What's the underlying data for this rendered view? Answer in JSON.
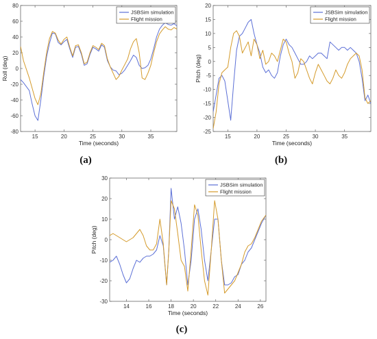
{
  "chart_data": [
    {
      "id": "a",
      "type": "line",
      "caption": "(a)",
      "title": "",
      "xlabel": "Time (seconds)",
      "ylabel": "Roll (deg)",
      "xlim": [
        12.5,
        39.5
      ],
      "ylim": [
        -80,
        80
      ],
      "xticks": [
        15,
        20,
        25,
        30,
        35
      ],
      "yticks": [
        -80,
        -60,
        -40,
        -20,
        0,
        20,
        40,
        60,
        80
      ],
      "legend_position": "top-right",
      "series": [
        {
          "name": "JSBSim simulation",
          "color": "#5b6fd6",
          "x": [
            12.5,
            13,
            14,
            14.5,
            15,
            15.5,
            16,
            16.5,
            17,
            17.5,
            18,
            18.5,
            19,
            19.5,
            20,
            20.5,
            21,
            21.5,
            22,
            22.5,
            23,
            23.5,
            24,
            24.5,
            25,
            25.5,
            26,
            26.5,
            27,
            27.5,
            28,
            28.5,
            29,
            29.5,
            30,
            30.5,
            31,
            31.5,
            32,
            32.5,
            33,
            33.5,
            34,
            34.5,
            35,
            35.5,
            36,
            36.5,
            37,
            37.5,
            38,
            38.5,
            39,
            39.5
          ],
          "y": [
            -14,
            -18,
            -28,
            -45,
            -60,
            -66,
            -40,
            -10,
            15,
            32,
            45,
            44,
            33,
            30,
            34,
            37,
            25,
            14,
            27,
            28,
            18,
            4,
            6,
            18,
            27,
            25,
            22,
            30,
            27,
            10,
            2,
            -2,
            -3,
            -8,
            -6,
            -2,
            4,
            10,
            17,
            14,
            4,
            0,
            1,
            4,
            12,
            25,
            40,
            50,
            55,
            58,
            56,
            55,
            57,
            54
          ]
        },
        {
          "name": "Flight mission",
          "color": "#d49a2a",
          "x": [
            12.5,
            13,
            14,
            14.5,
            15,
            15.5,
            16,
            16.5,
            17,
            17.5,
            18,
            18.5,
            19,
            19.5,
            20,
            20.5,
            21,
            21.5,
            22,
            22.5,
            23,
            23.5,
            24,
            24.5,
            25,
            25.5,
            26,
            26.5,
            27,
            27.5,
            28,
            28.5,
            29,
            29.5,
            30,
            30.5,
            31,
            31.5,
            32,
            32.5,
            33,
            33.5,
            34,
            34.5,
            35,
            35.5,
            36,
            36.5,
            37,
            37.5,
            38,
            38.5,
            39,
            39.5
          ],
          "y": [
            28,
            10,
            -12,
            -25,
            -38,
            -46,
            -32,
            -5,
            20,
            38,
            47,
            45,
            36,
            31,
            37,
            40,
            27,
            16,
            29,
            30,
            20,
            6,
            8,
            20,
            29,
            27,
            24,
            32,
            29,
            12,
            2,
            -6,
            -14,
            -10,
            -2,
            5,
            12,
            25,
            34,
            38,
            20,
            -12,
            -14,
            -6,
            4,
            20,
            34,
            44,
            49,
            53,
            50,
            49,
            52,
            50
          ]
        }
      ]
    },
    {
      "id": "b",
      "type": "line",
      "caption": "(b)",
      "title": "",
      "xlabel": "Time (seconds)",
      "ylabel": "Pitch (deg)",
      "xlim": [
        12.5,
        39.5
      ],
      "ylim": [
        -25,
        20
      ],
      "xticks": [
        15,
        20,
        25,
        30,
        35
      ],
      "yticks": [
        -25,
        -20,
        -15,
        -10,
        -5,
        0,
        5,
        10,
        15,
        20
      ],
      "legend_position": "top-right",
      "series": [
        {
          "name": "JSBSim simulation",
          "color": "#5b6fd6",
          "x": [
            12.5,
            13,
            13.5,
            14,
            14.5,
            15,
            15.5,
            16,
            16.5,
            17,
            17.5,
            18,
            18.5,
            19,
            19.5,
            20,
            20.5,
            21,
            21.5,
            22,
            22.5,
            23,
            23.5,
            24,
            24.5,
            25,
            25.5,
            26,
            26.5,
            27,
            27.5,
            28,
            28.5,
            29,
            29.5,
            30,
            30.5,
            31,
            31.5,
            32,
            32.5,
            33,
            33.5,
            34,
            34.5,
            35,
            35.5,
            36,
            36.5,
            37,
            37.5,
            38,
            38.5,
            39,
            39.5
          ],
          "y": [
            -18,
            -12,
            -6,
            -5,
            -7,
            -14,
            -21,
            -8,
            4,
            9,
            10,
            12,
            14,
            15,
            10,
            6,
            3,
            -2,
            -4,
            -3,
            -5,
            -6,
            -4,
            2,
            6,
            8,
            6,
            5,
            3,
            1,
            -1,
            -1,
            0,
            2,
            1,
            2,
            3,
            3,
            2,
            1,
            7,
            6,
            5,
            4,
            5,
            5,
            4,
            5,
            4,
            3,
            0,
            -6,
            -14,
            -12,
            -15
          ]
        },
        {
          "name": "Flight mission",
          "color": "#d49a2a",
          "x": [
            12.5,
            13,
            13.5,
            14,
            14.5,
            15,
            15.5,
            16,
            16.5,
            17,
            17.5,
            18,
            18.5,
            19,
            19.5,
            20,
            20.5,
            21,
            21.5,
            22,
            22.5,
            23,
            23.5,
            24,
            24.5,
            25,
            25.5,
            26,
            26.5,
            27,
            27.5,
            28,
            28.5,
            29,
            29.5,
            30,
            30.5,
            31,
            31.5,
            32,
            32.5,
            33,
            33.5,
            34,
            34.5,
            35,
            35.5,
            36,
            36.5,
            37,
            37.5,
            38,
            38.5,
            39,
            39.5
          ],
          "y": [
            -24,
            -18,
            -8,
            -4,
            -3,
            -2,
            5,
            10,
            11,
            9,
            3,
            5,
            7,
            2,
            8,
            6,
            1,
            4,
            -1,
            0,
            3,
            2,
            0,
            4,
            8,
            7,
            3,
            0,
            -6,
            -4,
            1,
            0,
            -3,
            -6,
            -8,
            -4,
            -1,
            -3,
            -5,
            -7,
            -8,
            -6,
            -3,
            -5,
            -6,
            -4,
            -1,
            1,
            2,
            3,
            2,
            -3,
            -13,
            -15,
            -14
          ]
        }
      ]
    },
    {
      "id": "c",
      "type": "line",
      "caption": "(c)",
      "title": "",
      "xlabel": "Time (seconds)",
      "ylabel": "Pitch (deg)",
      "xlim": [
        12.5,
        26.5
      ],
      "ylim": [
        -30,
        30
      ],
      "xticks": [
        14,
        16,
        18,
        20,
        22,
        24,
        26
      ],
      "yticks": [
        -30,
        -20,
        -10,
        0,
        10,
        20,
        30
      ],
      "legend_position": "top-right",
      "series": [
        {
          "name": "JSBSim simulation",
          "color": "#5b6fd6",
          "x": [
            12.5,
            12.8,
            13.1,
            13.4,
            13.7,
            14.0,
            14.3,
            14.6,
            14.9,
            15.2,
            15.5,
            15.8,
            16.1,
            16.4,
            16.7,
            17.0,
            17.3,
            17.6,
            17.8,
            18.0,
            18.3,
            18.6,
            18.9,
            19.2,
            19.5,
            19.8,
            20.1,
            20.4,
            20.7,
            21.0,
            21.3,
            21.6,
            21.9,
            22.2,
            22.5,
            22.8,
            23.1,
            23.4,
            23.7,
            24.0,
            24.3,
            24.6,
            24.9,
            25.2,
            25.5,
            25.8,
            26.1,
            26.5
          ],
          "y": [
            -11,
            -10,
            -8,
            -12,
            -17,
            -21,
            -19,
            -14,
            -10,
            -11,
            -9,
            -8,
            -8,
            -7,
            -5,
            2,
            -3,
            -22,
            -5,
            25,
            10,
            16,
            8,
            -5,
            -22,
            -10,
            10,
            15,
            5,
            -10,
            -20,
            -5,
            10,
            10,
            -10,
            -22,
            -22,
            -21,
            -18,
            -17,
            -12,
            -10,
            -6,
            -4,
            0,
            4,
            8,
            12
          ]
        },
        {
          "name": "Flight mission",
          "color": "#d49a2a",
          "x": [
            12.5,
            12.8,
            13.1,
            13.4,
            13.7,
            14.0,
            14.3,
            14.6,
            14.9,
            15.2,
            15.5,
            15.8,
            16.1,
            16.4,
            16.7,
            17.0,
            17.3,
            17.6,
            17.8,
            18.0,
            18.3,
            18.6,
            18.9,
            19.2,
            19.5,
            19.8,
            20.1,
            20.4,
            20.7,
            21.0,
            21.3,
            21.6,
            21.9,
            22.2,
            22.5,
            22.8,
            23.1,
            23.4,
            23.7,
            24.0,
            24.3,
            24.6,
            24.9,
            25.2,
            25.5,
            25.8,
            26.1,
            26.5
          ],
          "y": [
            2,
            3,
            2,
            1,
            0,
            -1,
            0,
            1,
            3,
            5,
            2,
            -3,
            -5,
            -5,
            -2,
            10,
            -2,
            -22,
            -5,
            19,
            15,
            3,
            -10,
            -13,
            -25,
            -5,
            17,
            12,
            -5,
            -20,
            -27,
            -5,
            19,
            10,
            -10,
            -26,
            -24,
            -22,
            -20,
            -16,
            -12,
            -6,
            -3,
            -2,
            1,
            5,
            9,
            12
          ]
        }
      ]
    }
  ]
}
